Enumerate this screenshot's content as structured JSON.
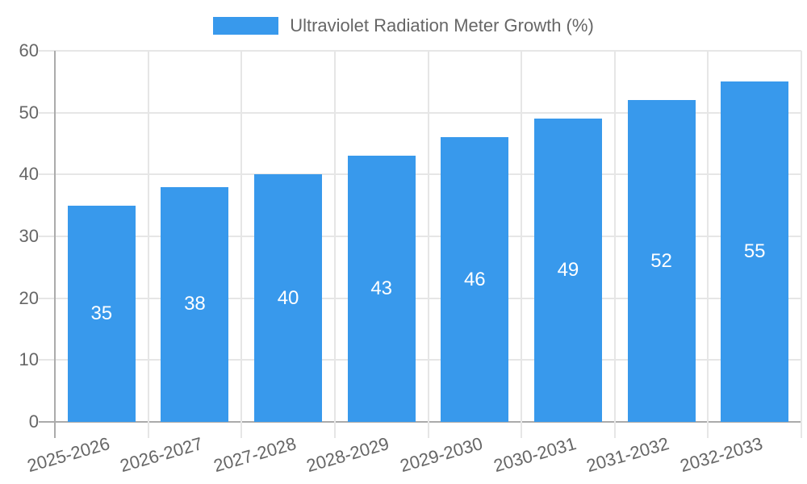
{
  "chart_data": {
    "type": "bar",
    "title": "Ultraviolet Radiation Meter Growth (%)",
    "legend_label": "Ultraviolet Radiation Meter Growth (%)",
    "legend_position": "top",
    "categories": [
      "2025-2026",
      "2026-2027",
      "2027-2028",
      "2028-2029",
      "2029-2030",
      "2030-2031",
      "2031-2032",
      "2032-2033"
    ],
    "values": [
      35,
      38,
      40,
      43,
      46,
      49,
      52,
      55
    ],
    "value_labels": [
      "35",
      "38",
      "40",
      "43",
      "46",
      "49",
      "52",
      "55"
    ],
    "xlabel": "",
    "ylabel": "",
    "ylim": [
      0,
      60
    ],
    "yticks": [
      0,
      10,
      20,
      30,
      40,
      50,
      60
    ],
    "grid": true,
    "x_label_rotation_deg": -16,
    "colors": {
      "bar": "#3899ec",
      "value_label": "#ffffff",
      "tick_text": "#666666",
      "gridline": "#e6e6e6",
      "axis_line": "#ababab",
      "background": "#ffffff"
    }
  }
}
